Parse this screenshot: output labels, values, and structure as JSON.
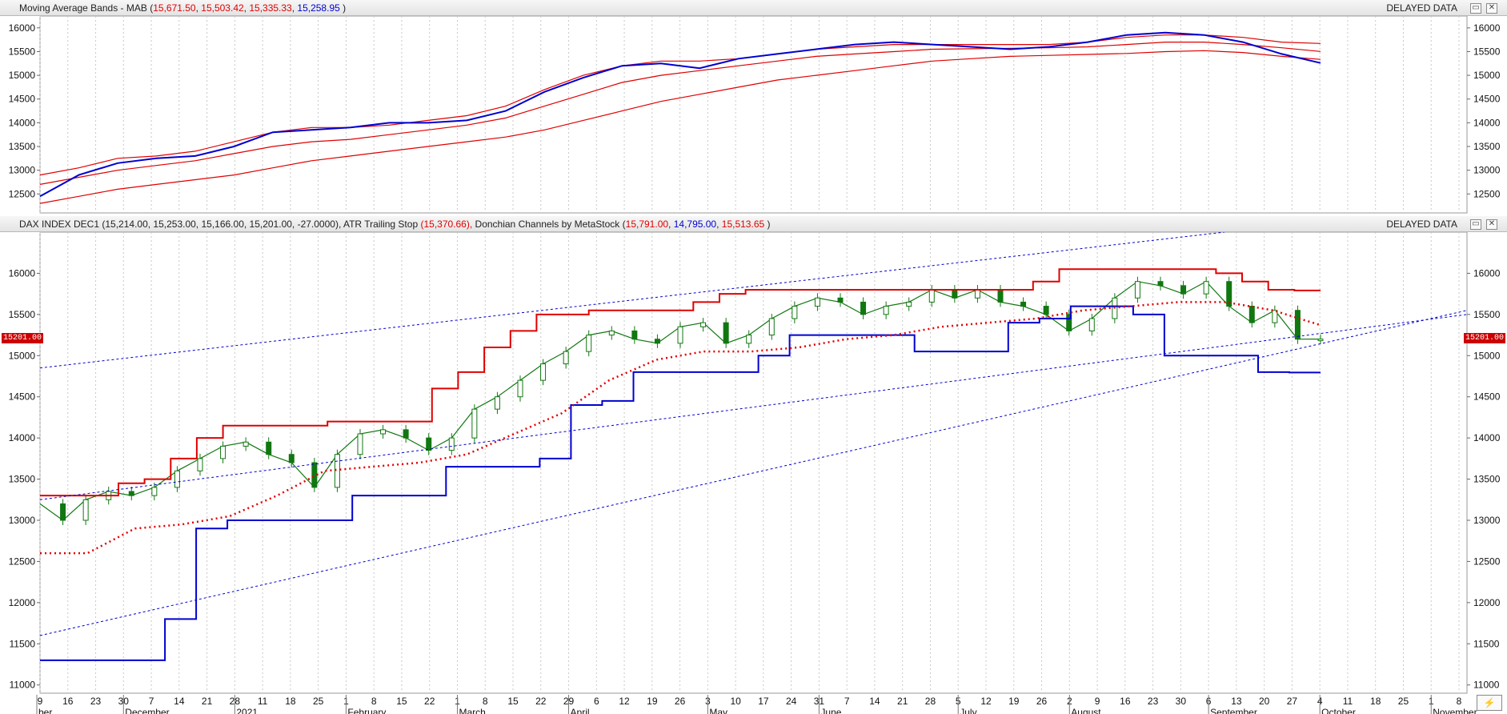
{
  "top_panel": {
    "title": "Moving Average Bands - MAB",
    "values": [
      "15,671.50",
      "15,503.42",
      "15,335.33",
      "15,258.95"
    ],
    "status": "DELAYED DATA"
  },
  "bottom_panel": {
    "instrument": "DAX INDEX DEC1",
    "ohlc": "(15,214.00, 15,253.00, 15,166.00, 15,201.00, -27.0000),",
    "atr_label": "ATR Trailing Stop",
    "atr_value": "(15,370.66),",
    "donchian_label": "Donchian Channels by MetaStock",
    "donchian_values": [
      "15,791.00",
      "14,795.00",
      "15,513.65"
    ],
    "status": "DELAYED DATA",
    "last_price_tag": "15201.00"
  },
  "buttons": {
    "restore": "▭",
    "close": "✕"
  },
  "colors": {
    "up": "#1a8a1a",
    "down": "#117711",
    "doji": "#e8d94a",
    "band": "#e00000",
    "channel_high": "#e00000",
    "channel_low": "#0000d0"
  },
  "chart_data": [
    {
      "type": "line",
      "title": "Moving Average Bands - MAB",
      "ylim": [
        12100,
        16250
      ],
      "yticks": [
        12500,
        13000,
        13500,
        14000,
        14500,
        15000,
        15500,
        16000
      ],
      "series": [
        {
          "name": "MAB upper",
          "color": "#e00000",
          "values": [
            12900,
            13050,
            13250,
            13300,
            13400,
            13600,
            13800,
            13900,
            13900,
            13950,
            14050,
            14150,
            14350,
            14700,
            15000,
            15200,
            15300,
            15300,
            15350,
            15450,
            15550,
            15600,
            15650,
            15650,
            15650,
            15650,
            15650,
            15700,
            15800,
            15850,
            15850,
            15800,
            15700,
            15671.5
          ]
        },
        {
          "name": "MAB middle",
          "color": "#e00000",
          "values": [
            12700,
            12850,
            13000,
            13100,
            13200,
            13350,
            13500,
            13600,
            13650,
            13750,
            13850,
            13950,
            14100,
            14350,
            14600,
            14850,
            15000,
            15100,
            15200,
            15300,
            15400,
            15450,
            15500,
            15550,
            15560,
            15570,
            15580,
            15600,
            15650,
            15700,
            15700,
            15650,
            15580,
            15503.42
          ]
        },
        {
          "name": "MAB lower",
          "color": "#e00000",
          "values": [
            12300,
            12450,
            12600,
            12700,
            12800,
            12900,
            13050,
            13200,
            13300,
            13400,
            13500,
            13600,
            13700,
            13850,
            14050,
            14250,
            14450,
            14600,
            14750,
            14900,
            15000,
            15100,
            15200,
            15300,
            15350,
            15400,
            15420,
            15440,
            15460,
            15500,
            15520,
            15480,
            15400,
            15335.33
          ]
        },
        {
          "name": "Close MA",
          "color": "#0000d0",
          "values": [
            12450,
            12900,
            13150,
            13250,
            13300,
            13500,
            13800,
            13850,
            13900,
            14000,
            14000,
            14050,
            14250,
            14650,
            14950,
            15200,
            15250,
            15150,
            15350,
            15450,
            15550,
            15650,
            15700,
            15650,
            15600,
            15550,
            15600,
            15700,
            15850,
            15900,
            15850,
            15700,
            15450,
            15258.95
          ]
        }
      ]
    },
    {
      "type": "line",
      "title": "DAX INDEX DEC1",
      "ylim": [
        10900,
        16500
      ],
      "yticks": [
        11000,
        11500,
        12000,
        12500,
        13000,
        13500,
        14000,
        14500,
        15000,
        15500,
        16000
      ],
      "x_tick_labels": [
        "9",
        "16",
        "23",
        "30",
        "7",
        "14",
        "21",
        "28",
        "11",
        "18",
        "25",
        "1",
        "8",
        "15",
        "22",
        "1",
        "8",
        "15",
        "22",
        "29",
        "6",
        "12",
        "19",
        "26",
        "3",
        "10",
        "17",
        "24",
        "31",
        "7",
        "14",
        "21",
        "28",
        "5",
        "12",
        "19",
        "26",
        "2",
        "9",
        "16",
        "23",
        "30",
        "6",
        "13",
        "20",
        "27",
        "4",
        "11",
        "18",
        "25",
        "1",
        "8"
      ],
      "month_labels": [
        "ber",
        "December",
        "2021",
        "February",
        "March",
        "April",
        "May",
        "June",
        "July",
        "August",
        "September",
        "October",
        "November"
      ],
      "series": [
        {
          "name": "Close",
          "color": "#117711",
          "values": [
            13200,
            13000,
            13250,
            13350,
            13300,
            13400,
            13600,
            13750,
            13900,
            13950,
            13800,
            13700,
            13400,
            13800,
            14050,
            14100,
            14000,
            13850,
            14000,
            14350,
            14500,
            14700,
            14900,
            15050,
            15250,
            15300,
            15200,
            15150,
            15350,
            15400,
            15150,
            15250,
            15450,
            15600,
            15700,
            15650,
            15500,
            15600,
            15650,
            15800,
            15700,
            15800,
            15650,
            15600,
            15500,
            15300,
            15450,
            15700,
            15900,
            15850,
            15750,
            15900,
            15600,
            15400,
            15550,
            15200,
            15201
          ]
        },
        {
          "name": "Donchian High",
          "color": "#e00000",
          "values": [
            13300,
            13300,
            13300,
            13450,
            13500,
            13750,
            14000,
            14150,
            14150,
            14150,
            14150,
            14200,
            14200,
            14200,
            14200,
            14600,
            14800,
            15100,
            15300,
            15500,
            15500,
            15550,
            15550,
            15550,
            15550,
            15650,
            15750,
            15800,
            15800,
            15800,
            15800,
            15800,
            15800,
            15800,
            15800,
            15800,
            15800,
            15800,
            15900,
            16050,
            16050,
            16050,
            16050,
            16050,
            16050,
            16000,
            15900,
            15800,
            15791
          ]
        },
        {
          "name": "Donchian Low",
          "color": "#0000d0",
          "values": [
            11300,
            11300,
            11300,
            11300,
            11800,
            12900,
            13000,
            13000,
            13000,
            13000,
            13300,
            13300,
            13300,
            13650,
            13650,
            13650,
            13750,
            14400,
            14450,
            14800,
            14800,
            14800,
            14800,
            15000,
            15250,
            15250,
            15250,
            15250,
            15050,
            15050,
            15050,
            15400,
            15450,
            15600,
            15600,
            15500,
            15000,
            15000,
            15000,
            14800,
            14795
          ]
        },
        {
          "name": "ATR Trailing Stop",
          "color": "#e00000",
          "values": [
            12600,
            12600,
            12900,
            12950,
            13050,
            13300,
            13600,
            13650,
            13700,
            13800,
            14050,
            14300,
            14700,
            14950,
            15050,
            15050,
            15100,
            15200,
            15250,
            15350,
            15400,
            15450,
            15550,
            15600,
            15650,
            15650,
            15550,
            15370.66
          ]
        }
      ]
    }
  ]
}
